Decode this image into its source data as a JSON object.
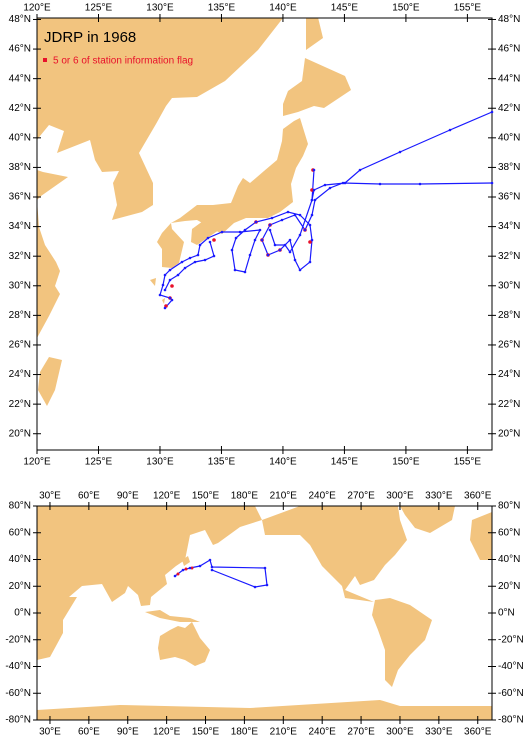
{
  "title": "JDRP in 1968",
  "legend": "5 or 6 of station information flag",
  "regional_map": {
    "xlim": [
      120,
      157
    ],
    "ylim": [
      18.9,
      48.1
    ],
    "xticks": [
      {
        "value": 120,
        "label": "120°E"
      },
      {
        "value": 125,
        "label": "125°E"
      },
      {
        "value": 130,
        "label": "130°E"
      },
      {
        "value": 135,
        "label": "135°E"
      },
      {
        "value": 140,
        "label": "140°E"
      },
      {
        "value": 145,
        "label": "145°E"
      },
      {
        "value": 150,
        "label": "150°E"
      },
      {
        "value": 155,
        "label": "155°E"
      }
    ],
    "yticks": [
      {
        "value": 20,
        "label": "20°N"
      },
      {
        "value": 22,
        "label": "22°N"
      },
      {
        "value": 24,
        "label": "24°N"
      },
      {
        "value": 26,
        "label": "26°N"
      },
      {
        "value": 28,
        "label": "28°N"
      },
      {
        "value": 30,
        "label": "30°N"
      },
      {
        "value": 32,
        "label": "32°N"
      },
      {
        "value": 34,
        "label": "34°N"
      },
      {
        "value": 36,
        "label": "36°N"
      },
      {
        "value": 38,
        "label": "38°N"
      },
      {
        "value": 40,
        "label": "40°N"
      },
      {
        "value": 42,
        "label": "42°N"
      },
      {
        "value": 44,
        "label": "44°N"
      },
      {
        "value": 46,
        "label": "46°N"
      },
      {
        "value": 48,
        "label": "48°N"
      }
    ]
  },
  "global_map": {
    "xlim": [
      20,
      371
    ],
    "ylim": [
      -80,
      80
    ],
    "xticks": [
      {
        "value": 30,
        "label": "30°E"
      },
      {
        "value": 60,
        "label": "60°E"
      },
      {
        "value": 90,
        "label": "90°E"
      },
      {
        "value": 120,
        "label": "120°E"
      },
      {
        "value": 150,
        "label": "150°E"
      },
      {
        "value": 180,
        "label": "180°E"
      },
      {
        "value": 210,
        "label": "210°E"
      },
      {
        "value": 240,
        "label": "240°E"
      },
      {
        "value": 270,
        "label": "270°E"
      },
      {
        "value": 300,
        "label": "300°E"
      },
      {
        "value": 330,
        "label": "330°E"
      },
      {
        "value": 360,
        "label": "360°E"
      }
    ],
    "yticks": [
      {
        "value": -80,
        "label": "-80°N"
      },
      {
        "value": -60,
        "label": "-60°N"
      },
      {
        "value": -40,
        "label": "-40°N"
      },
      {
        "value": -20,
        "label": "-20°N"
      },
      {
        "value": 0,
        "label": "0°N"
      },
      {
        "value": 20,
        "label": "20°N"
      },
      {
        "value": 40,
        "label": "40°N"
      },
      {
        "value": 60,
        "label": "60°N"
      },
      {
        "value": 80,
        "label": "80°N"
      }
    ]
  }
}
